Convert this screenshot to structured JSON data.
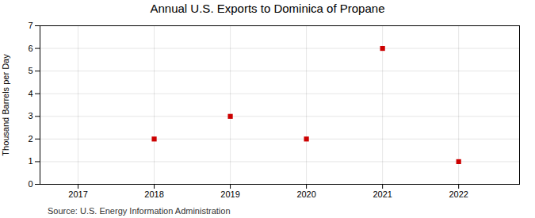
{
  "chart_data": {
    "type": "scatter",
    "title": "Annual U.S. Exports to Dominica of Propane",
    "ylabel": "Thousand Barrels per Day",
    "source": "Source: U.S. Energy Information Administration",
    "x": [
      2018,
      2019,
      2020,
      2021,
      2022
    ],
    "values": [
      2,
      3,
      2,
      6,
      1
    ],
    "color": "#cc0000",
    "marker": "square",
    "xlim": [
      2016.5,
      2022.8
    ],
    "xticks": [
      2017,
      2018,
      2019,
      2020,
      2021,
      2022
    ],
    "ylim": [
      0,
      7
    ],
    "yticks": [
      0,
      1,
      2,
      3,
      4,
      5,
      6,
      7
    ],
    "grid": true
  }
}
